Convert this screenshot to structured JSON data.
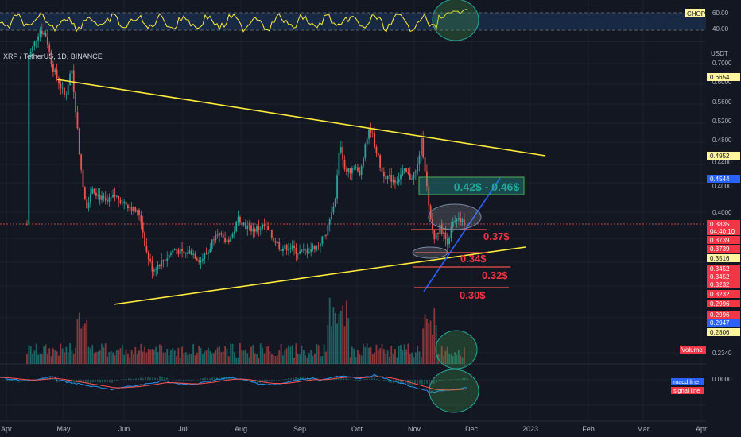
{
  "header": {
    "symbol_label": "XRP / TetherUS, 1D, BINANCE",
    "currency": "USDT"
  },
  "chop": {
    "tag": "CHOP",
    "ticks": [
      "60.00",
      "40.00"
    ]
  },
  "price_axis": {
    "ticks": [
      "0.7000",
      "0.6000",
      "0.5600",
      "0.5200",
      "0.4800",
      "0.4400",
      "0.4000",
      "0.2340"
    ],
    "badges": [
      {
        "text": "0.6654",
        "bg": "#fff59d",
        "fg": "#131722"
      },
      {
        "text": "0.4952",
        "bg": "#fff59d",
        "fg": "#131722"
      },
      {
        "text": "0.4544",
        "bg": "#2962ff",
        "fg": "#ffffff"
      },
      {
        "text": "0.3835",
        "bg": "#f23645",
        "fg": "#ffffff"
      },
      {
        "text": "04:40:10",
        "bg": "#f23645",
        "fg": "#ffffff"
      },
      {
        "text": "0.3739",
        "bg": "#f23645",
        "fg": "#ffffff"
      },
      {
        "text": "0.3739",
        "bg": "#f23645",
        "fg": "#ffffff"
      },
      {
        "text": "0.3516",
        "bg": "#fff59d",
        "fg": "#131722"
      },
      {
        "text": "0.3452",
        "bg": "#f23645",
        "fg": "#ffffff"
      },
      {
        "text": "0.3452",
        "bg": "#f23645",
        "fg": "#ffffff"
      },
      {
        "text": "0.3232",
        "bg": "#f23645",
        "fg": "#ffffff"
      },
      {
        "text": "0.3232",
        "bg": "#f23645",
        "fg": "#ffffff"
      },
      {
        "text": "0.2996",
        "bg": "#f23645",
        "fg": "#ffffff"
      },
      {
        "text": "0.2996",
        "bg": "#f23645",
        "fg": "#ffffff"
      },
      {
        "text": "0.2947",
        "bg": "#2962ff",
        "fg": "#ffffff"
      },
      {
        "text": "0.2806",
        "bg": "#fff59d",
        "fg": "#131722"
      }
    ],
    "volume_tag": "Volume"
  },
  "macd": {
    "tick": "0.0000",
    "legend": [
      "macd line",
      "signal line"
    ]
  },
  "time_axis": [
    "Apr",
    "May",
    "Jun",
    "Jul",
    "Aug",
    "Sep",
    "Oct",
    "Nov",
    "Dec",
    "2023",
    "Feb",
    "Mar",
    "Apr"
  ],
  "annotations": {
    "target_box": "0.42$ - 0.46$",
    "levels": [
      "0.37$",
      "0.34$",
      "0.32$",
      "0.30$"
    ]
  },
  "colors": {
    "background": "#131722",
    "up": "#26a69a",
    "down": "#ef5350",
    "trendline": "#ffeb3b",
    "support": "#2962ff",
    "chop_line": "#ffeb3b",
    "macd_line": "#2196f3",
    "signal_line": "#ff5252"
  },
  "chart_data": {
    "type": "candlestick",
    "ylim": [
      0.234,
      0.72
    ],
    "grid": true,
    "trendlines": [
      {
        "name": "descending resistance",
        "from": [
          "2022-05-01",
          0.665
        ],
        "to": [
          "2023-01-12",
          0.495
        ]
      },
      {
        "name": "ascending support",
        "from": [
          "2022-05-30",
          0.302
        ],
        "to": [
          "2022-12-10",
          0.352
        ]
      },
      {
        "name": "blue support",
        "from": [
          "2022-11-09",
          0.298
        ],
        "to": [
          "2022-12-16",
          0.456
        ]
      }
    ],
    "horizontal_levels": [
      0.37,
      0.34,
      0.32,
      0.3
    ],
    "target_zone": [
      0.42,
      0.46
    ],
    "last_price": 0.3835
  }
}
